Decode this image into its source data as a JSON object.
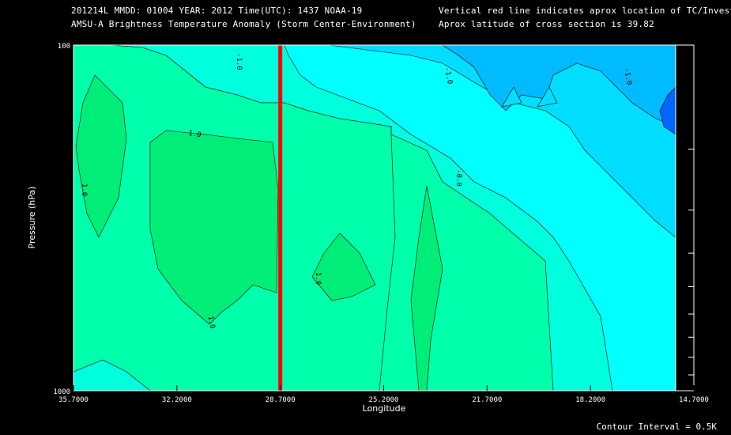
{
  "header": {
    "line1": "201214L  MMDD: 01004 YEAR: 2012 Time(UTC): 1437 NOAA-19",
    "line2": "AMSU-A Brightness Temperature Anomaly (Storm Center-Environment)",
    "note1": "Vertical red line indicates aprox location of TC/Invest",
    "note2": "Aprox latitude of cross section is 39.82"
  },
  "footer": {
    "contour_interval": "Contour Interval = 0.5K"
  },
  "chart_data": {
    "type": "heatmap",
    "title": "AMSU-A Brightness Temperature Anomaly (Storm Center-Environment)",
    "xlabel": "Longitude",
    "ylabel": "Pressure (hPa)",
    "x_ticks": [
      "35.7000",
      "32.2000",
      "28.7000",
      "25.2000",
      "21.7000",
      "18.2000",
      "14.7000"
    ],
    "x_range": [
      35.7,
      14.7
    ],
    "y_range": [
      1000,
      100
    ],
    "y_scale": "log",
    "y_tick_labels": [
      "100",
      "1000"
    ],
    "y_minor_ticks": [
      200,
      300,
      400,
      500,
      600,
      700,
      800,
      900
    ],
    "tc_longitude": 28.7,
    "contour_interval": 0.5,
    "contour_labels": [
      "-1.0",
      "-0.0",
      "1.0",
      "1.0",
      "1.0",
      "1.0",
      "-0.0",
      "-1.0",
      "-1.0"
    ],
    "colors": {
      "anom_1_0": "#00ee77",
      "anom_0_5": "#00ffaa",
      "anom_0_0": "#00ffdd",
      "anom_m0_5": "#00ffff",
      "anom_m1_0": "#00ddff",
      "anom_m1_5": "#00bbff",
      "anom_m2_0": "#0066ff",
      "tc_line": "#ff0000"
    }
  }
}
